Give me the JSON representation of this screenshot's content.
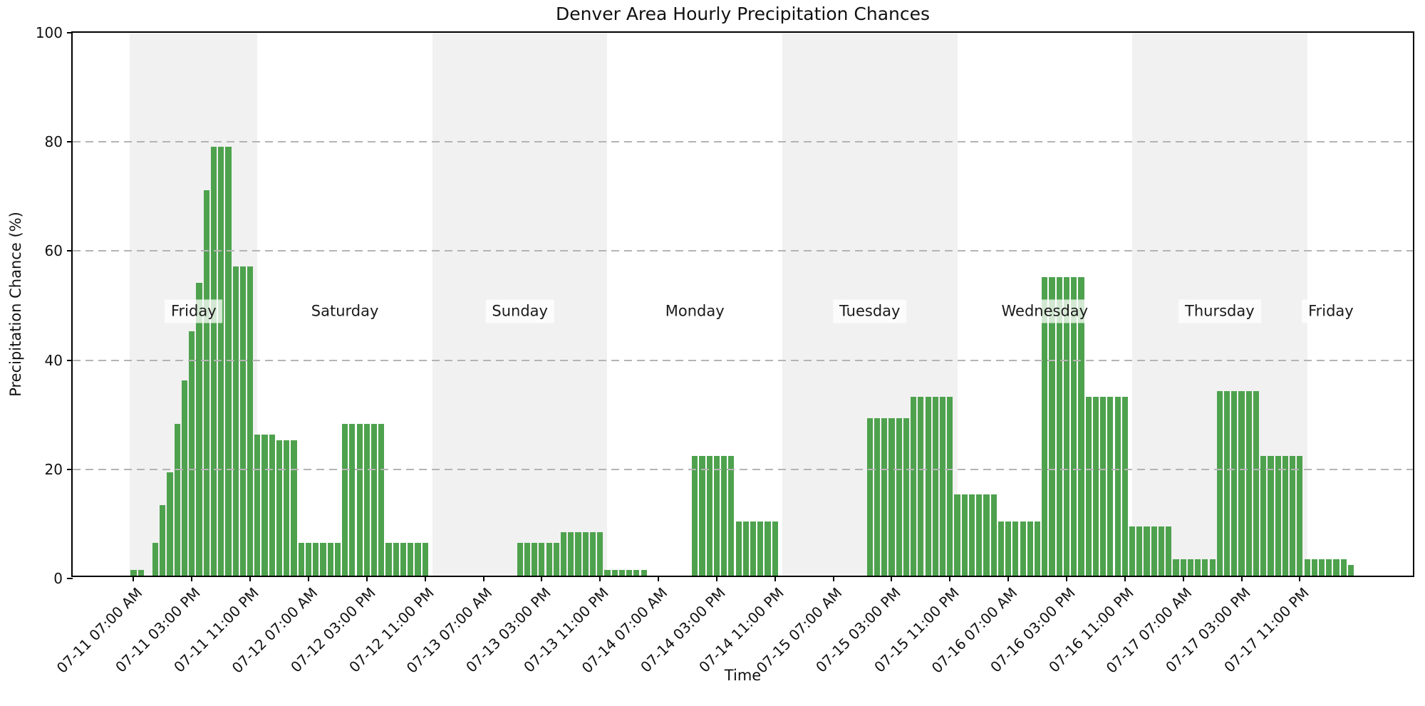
{
  "title": "Denver Area Hourly Precipitation Chances",
  "chart_data": {
    "type": "bar",
    "title": "Denver Area Hourly Precipitation Chances",
    "xlabel": "Time",
    "ylabel": "Precipitation Chance (%)",
    "ylim": [
      0,
      100
    ],
    "yticks": [
      0,
      20,
      40,
      60,
      80,
      100
    ],
    "gridlines_y": [
      20,
      40,
      60,
      80
    ],
    "grid_on": true,
    "legend": "none",
    "bar_color": "#4ea24e",
    "band_color": "#f1f1f1",
    "grid_color": "#b4b4b4",
    "xlim_hours": [
      -1.35,
      182.5
    ],
    "bar_width_hours": 0.8,
    "first_hour": 7,
    "x_origin_date": "07-11",
    "values": [
      1,
      1,
      0,
      6,
      13,
      19,
      28,
      36,
      45,
      54,
      71,
      79,
      79,
      79,
      57,
      57,
      57,
      26,
      26,
      26,
      25,
      25,
      25,
      6,
      6,
      6,
      6,
      6,
      6,
      28,
      28,
      28,
      28,
      28,
      28,
      6,
      6,
      6,
      6,
      6,
      6,
      0,
      0,
      0,
      0,
      0,
      0,
      0,
      0,
      0,
      0,
      0,
      0,
      6,
      6,
      6,
      6,
      6,
      6,
      8,
      8,
      8,
      8,
      8,
      8,
      1,
      1,
      1,
      1,
      1,
      1,
      0,
      0,
      0,
      0,
      0,
      0,
      22,
      22,
      22,
      22,
      22,
      22,
      10,
      10,
      10,
      10,
      10,
      10,
      0,
      0,
      0,
      0,
      0,
      0,
      0,
      0,
      0,
      0,
      0,
      0,
      29,
      29,
      29,
      29,
      29,
      29,
      33,
      33,
      33,
      33,
      33,
      33,
      15,
      15,
      15,
      15,
      15,
      15,
      10,
      10,
      10,
      10,
      10,
      10,
      55,
      55,
      55,
      55,
      55,
      55,
      33,
      33,
      33,
      33,
      33,
      33,
      9,
      9,
      9,
      9,
      9,
      9,
      3,
      3,
      3,
      3,
      3,
      3,
      34,
      34,
      34,
      34,
      34,
      34,
      22,
      22,
      22,
      22,
      22,
      22,
      3,
      3,
      3,
      3,
      3,
      3,
      2
    ],
    "xtick_hours": [
      7,
      15,
      23,
      31,
      39,
      47,
      55,
      63,
      71,
      79,
      87,
      95,
      103,
      111,
      119,
      127,
      135,
      143,
      151,
      159,
      167
    ],
    "xtick_labels": [
      "07-11 07:00 AM",
      "07-11 03:00 PM",
      "07-11 11:00 PM",
      "07-12 07:00 AM",
      "07-12 03:00 PM",
      "07-12 11:00 PM",
      "07-13 07:00 AM",
      "07-13 03:00 PM",
      "07-13 11:00 PM",
      "07-14 07:00 AM",
      "07-14 03:00 PM",
      "07-14 11:00 PM",
      "07-15 07:00 AM",
      "07-15 03:00 PM",
      "07-15 11:00 PM",
      "07-16 07:00 AM",
      "07-16 03:00 PM",
      "07-16 11:00 PM",
      "07-17 07:00 AM",
      "07-17 03:00 PM",
      "07-17 11:00 PM"
    ],
    "day_label_y_value": 49,
    "day_bands": [
      {
        "label": "Friday",
        "start": 6.5,
        "end": 24,
        "shaded": true,
        "label_h": 15.25
      },
      {
        "label": "Saturday",
        "start": 24,
        "end": 48,
        "shaded": false,
        "label_h": 36
      },
      {
        "label": "Sunday",
        "start": 48,
        "end": 72,
        "shaded": true,
        "label_h": 60
      },
      {
        "label": "Monday",
        "start": 72,
        "end": 96,
        "shaded": false,
        "label_h": 84
      },
      {
        "label": "Tuesday",
        "start": 96,
        "end": 120,
        "shaded": true,
        "label_h": 108
      },
      {
        "label": "Wednesday",
        "start": 120,
        "end": 144,
        "shaded": false,
        "label_h": 132
      },
      {
        "label": "Thursday",
        "start": 144,
        "end": 168,
        "shaded": true,
        "label_h": 156
      },
      {
        "label": "Friday",
        "start": 168,
        "end": 182.5,
        "shaded": false,
        "label_h": 171.25
      }
    ]
  }
}
